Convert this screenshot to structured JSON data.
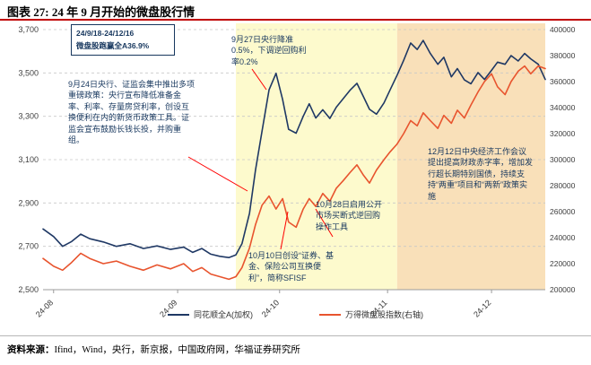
{
  "header": {
    "title": "图表 27: 24 年 9 月开始的微盘股行情"
  },
  "footer": {
    "source_label": "资料来源：",
    "source_text": "Ifind，Wind，央行，新京报，中国政府网，华福证券研究所"
  },
  "legend": [
    {
      "label": "同花顺全A(加权)",
      "color": "#1f3864"
    },
    {
      "label": "万得微盘股指数(右轴)",
      "color": "#e8542e"
    }
  ],
  "annotations": {
    "range_box_line1": "24/9/18-24/12/16",
    "range_box_line2": "微盘股跑赢全A36.9%",
    "sep24": "9月24日央行、证监会集中推出多项重磅政策：央行宣布降低准备金率、利率、存量房贷利率，创设互换便利在内的新货币政策工具。证监会宣布鼓励长钱长投，并购重组。",
    "sep27": "9月27日央行降准0.5%，下调逆回购利率0.2%",
    "oct28": "10月28日启用公开市场买断式逆回购操作工具",
    "oct10": "10月10日创设“证券、基金、保险公司互换便利”，简称SFISF",
    "dec12": "12月12日中央经济工作会议提出提高财政赤字率，增加发行超长期特别国债，持续支持“两重”项目和“两新”政策实施"
  },
  "chart_data": {
    "type": "line",
    "title": "24 年 9 月开始的微盘股行情",
    "left_axis": {
      "min": 2500,
      "max": 3700,
      "tick_labels": [
        "3,700",
        "3,500",
        "3,300",
        "3,100",
        "2,900",
        "2,700",
        "2,500"
      ]
    },
    "right_axis": {
      "min": 200000,
      "max": 400000,
      "tick_labels": [
        "400000",
        "380000",
        "360000",
        "340000",
        "320000",
        "300000",
        "280000",
        "260000",
        "240000",
        "220000",
        "200000"
      ]
    },
    "x_ticks": [
      {
        "label": "24-08",
        "pos": 0.021
      },
      {
        "label": "24-09",
        "pos": 0.268
      },
      {
        "label": "24-10",
        "pos": 0.471
      },
      {
        "label": "24-11",
        "pos": 0.686
      },
      {
        "label": "24-12",
        "pos": 0.893
      }
    ],
    "highlight_regions": [
      {
        "start": 0.384,
        "end": 0.705,
        "color": "#fdfacd"
      },
      {
        "start": 0.705,
        "end": 1.0,
        "color": "#f9e0b9"
      }
    ],
    "grid": true,
    "legend_position": "bottom",
    "x": [
      0.0,
      0.021,
      0.039,
      0.057,
      0.075,
      0.093,
      0.12,
      0.146,
      0.173,
      0.2,
      0.227,
      0.254,
      0.28,
      0.298,
      0.316,
      0.334,
      0.352,
      0.37,
      0.384,
      0.396,
      0.411,
      0.423,
      0.436,
      0.45,
      0.464,
      0.477,
      0.489,
      0.504,
      0.518,
      0.53,
      0.543,
      0.557,
      0.571,
      0.584,
      0.598,
      0.611,
      0.625,
      0.638,
      0.65,
      0.664,
      0.679,
      0.691,
      0.705,
      0.718,
      0.732,
      0.745,
      0.757,
      0.771,
      0.786,
      0.798,
      0.813,
      0.825,
      0.839,
      0.852,
      0.866,
      0.879,
      0.893,
      0.905,
      0.92,
      0.932,
      0.946,
      0.959,
      0.971,
      0.986,
      1.0
    ],
    "series": [
      {
        "name": "同花顺全A(加权)",
        "axis": "left",
        "color": "#1f3864",
        "values": [
          2780,
          2745,
          2700,
          2722,
          2756,
          2735,
          2720,
          2700,
          2712,
          2690,
          2702,
          2686,
          2696,
          2672,
          2690,
          2664,
          2654,
          2648,
          2660,
          2712,
          2852,
          3052,
          3232,
          3422,
          3498,
          3378,
          3240,
          3222,
          3300,
          3358,
          3292,
          3330,
          3290,
          3342,
          3382,
          3420,
          3452,
          3390,
          3332,
          3310,
          3362,
          3422,
          3490,
          3558,
          3638,
          3608,
          3650,
          3590,
          3540,
          3572,
          3482,
          3520,
          3468,
          3450,
          3502,
          3470,
          3512,
          3550,
          3540,
          3580,
          3555,
          3590,
          3565,
          3540,
          3470
        ]
      },
      {
        "name": "万得微盘股指数(右轴)",
        "axis": "right",
        "color": "#e8542e",
        "values": [
          224000,
          218000,
          215000,
          221000,
          228000,
          224000,
          220000,
          222000,
          218000,
          215000,
          219000,
          216000,
          220000,
          214000,
          217000,
          212000,
          210000,
          208000,
          210000,
          217000,
          232000,
          250000,
          265000,
          272000,
          262000,
          270000,
          252000,
          248000,
          262000,
          270000,
          264000,
          274000,
          268000,
          278000,
          284000,
          290000,
          296000,
          288000,
          282000,
          292000,
          300000,
          306000,
          312000,
          320000,
          330000,
          326000,
          336000,
          330000,
          324000,
          334000,
          328000,
          338000,
          332000,
          342000,
          352000,
          360000,
          366000,
          356000,
          350000,
          360000,
          368000,
          372000,
          366000,
          372000,
          370000
        ]
      }
    ]
  }
}
